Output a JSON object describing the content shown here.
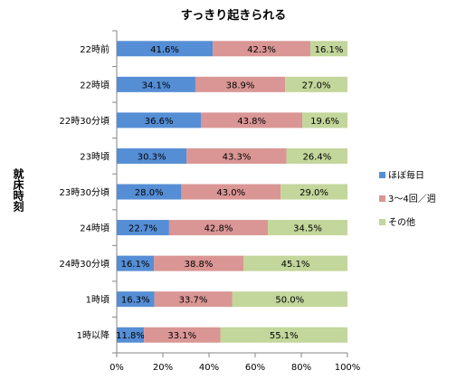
{
  "chart_data": {
    "type": "bar",
    "orientation": "horizontal",
    "stacked": "percent",
    "title": "すっきり起きられる",
    "ylabel": "就床時刻",
    "xlabel": "",
    "categories": [
      "22時前",
      "22時頃",
      "22時30分頃",
      "23時頃",
      "23時30分頃",
      "24時頃",
      "24時30分頃",
      "1時頃",
      "1時以降"
    ],
    "series": [
      {
        "name": "ほぼ毎日",
        "color": "#558ed5",
        "values": [
          41.6,
          34.1,
          36.6,
          30.3,
          28.0,
          22.7,
          16.1,
          16.3,
          11.8
        ],
        "labels": [
          "41.6%",
          "34.1%",
          "36.6%",
          "30.3%",
          "28.0%",
          "22.7%",
          "16.1%",
          "16.3%",
          "11.8%"
        ]
      },
      {
        "name": "3～4回／週",
        "color": "#d99694",
        "values": [
          42.3,
          38.9,
          43.8,
          43.3,
          43.0,
          42.8,
          38.8,
          33.7,
          33.1
        ],
        "labels": [
          "42.3%",
          "38.9%",
          "43.8%",
          "43.3%",
          "43.0%",
          "42.8%",
          "38.8%",
          "33.7%",
          "33.1%"
        ]
      },
      {
        "name": "その他",
        "color": "#c3d69b",
        "values": [
          16.1,
          27.0,
          19.6,
          26.4,
          29.0,
          34.5,
          45.1,
          50.0,
          55.1
        ],
        "labels": [
          "16.1%",
          "27.0%",
          "19.6%",
          "26.4%",
          "29.0%",
          "34.5%",
          "45.1%",
          "50.0%",
          "55.1%"
        ]
      }
    ],
    "xlim": [
      0,
      100
    ],
    "xticks": [
      "0%",
      "20%",
      "40%",
      "60%",
      "80%",
      "100%"
    ],
    "legend_position": "right",
    "grid": false
  }
}
